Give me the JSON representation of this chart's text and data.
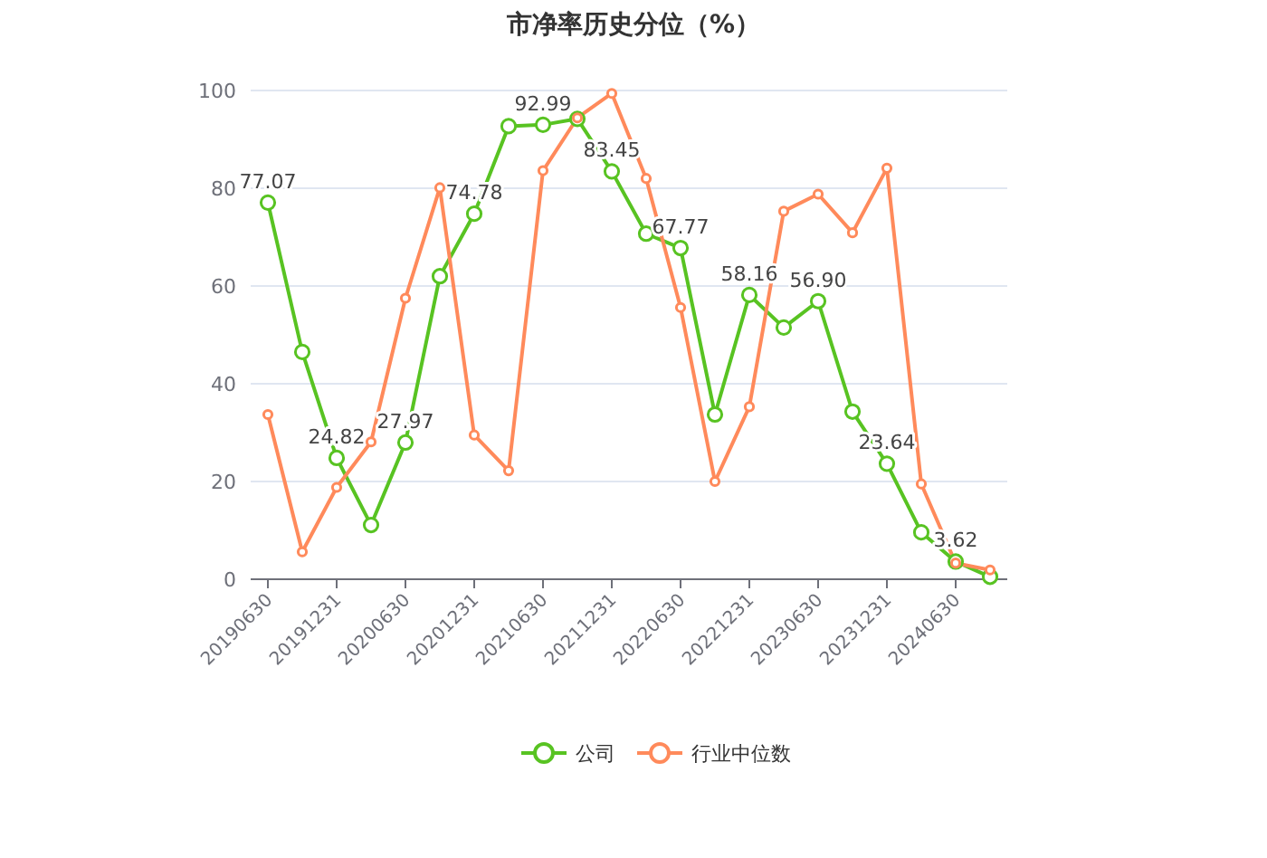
{
  "chart_data": {
    "type": "line",
    "title": "市净率历史分位（%）",
    "categories": [
      "20190630",
      null,
      "20191231",
      null,
      "20200630",
      null,
      "20201231",
      null,
      "20210630",
      null,
      "20211231",
      null,
      "20220630",
      null,
      "20221231",
      null,
      "20230630",
      null,
      "20231231",
      null,
      "20240630",
      null
    ],
    "series": [
      {
        "name": "公司",
        "color": "#58c322",
        "values": [
          77.07,
          46.5,
          24.82,
          11.1,
          27.97,
          62.0,
          74.78,
          92.7,
          92.99,
          94.2,
          83.45,
          70.7,
          67.77,
          33.7,
          58.16,
          51.5,
          56.9,
          34.3,
          23.64,
          9.6,
          3.62,
          0.5
        ],
        "value_labels": [
          "77.07",
          null,
          "24.82",
          null,
          "27.97",
          null,
          "74.78",
          null,
          "92.99",
          null,
          "83.45",
          null,
          "67.77",
          null,
          "58.16",
          null,
          "56.90",
          null,
          "23.64",
          null,
          "3.62",
          null
        ]
      },
      {
        "name": "行业中位数",
        "color": "#ff8a5b",
        "values": [
          33.7,
          5.6,
          18.8,
          28.1,
          57.5,
          80.1,
          29.5,
          22.2,
          83.6,
          94.4,
          99.4,
          82.0,
          55.6,
          20.0,
          35.3,
          75.3,
          78.8,
          70.9,
          84.1,
          19.5,
          3.3,
          1.9
        ]
      }
    ],
    "ylim": [
      0,
      100
    ],
    "yticks": [
      0,
      20,
      40,
      60,
      80,
      100
    ],
    "grid": "y",
    "legend": "bottom",
    "marker": "circle"
  }
}
